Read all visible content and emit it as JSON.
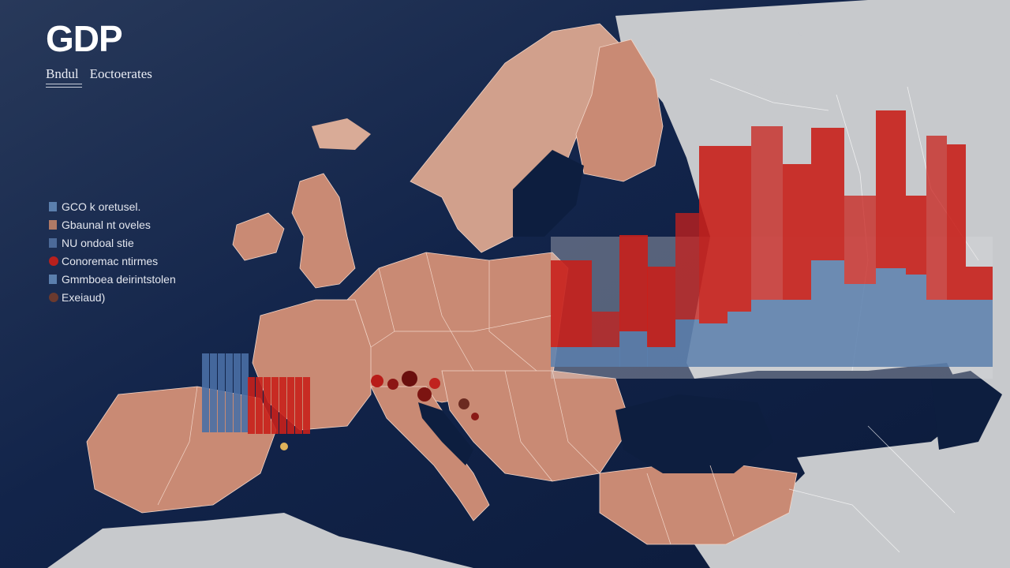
{
  "header": {
    "title": "GDP",
    "subtitle_left": "Bndul",
    "subtitle_right": "Eoctoerates"
  },
  "legend": {
    "items": [
      {
        "label": "GCO k oretusel.",
        "color": "#5b7fad",
        "icon": "square-swatch"
      },
      {
        "label": "Gbaunal nt oveles",
        "color": "#b07a66",
        "icon": "square-swatch"
      },
      {
        "label": "NU ondoal stie",
        "color": "#4c6a98",
        "icon": "bar-swatch"
      },
      {
        "label": "Conoremac ntirmes",
        "color": "#b8201d",
        "icon": "dot-swatch"
      },
      {
        "label": "Gmmboea deirintstolen",
        "color": "#5b7fad",
        "icon": "square-swatch"
      },
      {
        "label": "Exeiaud)",
        "color": "#6b3a2e",
        "icon": "dot-swatch"
      }
    ]
  },
  "colors": {
    "sea": "#0e1f3f",
    "country_fill": "#c98a74",
    "eastern_land": "#c7c9cc",
    "border": "#f2d6c9",
    "bar_red": "#c8201b",
    "bar_blue": "#5b7fad"
  },
  "map_features": [
    "iberia",
    "france",
    "central-europe",
    "italy",
    "balkans",
    "scandinavia",
    "finland",
    "british-isles",
    "iceland",
    "baltic-sea",
    "black-sea",
    "mediterranean-sea",
    "eastern-europe",
    "anatolia",
    "north-africa"
  ]
}
